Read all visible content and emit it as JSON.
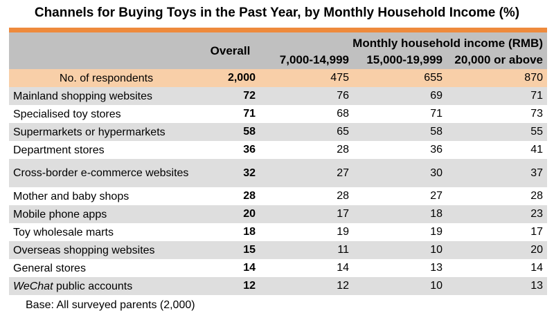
{
  "title": "Channels for Buying Toys in the Past Year, by Monthly Household Income (%)",
  "accent_color": "#ee8a3c",
  "header": {
    "overall": "Overall",
    "income_group": "Monthly household income (RMB)",
    "income_brackets": [
      "7,000-14,999",
      "15,000-19,999",
      "20,000 or above"
    ]
  },
  "respondents": {
    "label": "No. of respondents",
    "overall": "2,000",
    "values": [
      "475",
      "655",
      "870"
    ]
  },
  "footnote": "Base: All surveyed parents (2,000)",
  "chart_data": {
    "type": "table",
    "title": "Channels for Buying Toys in the Past Year, by Monthly Household Income (%)",
    "columns": [
      "Overall",
      "7,000-14,999",
      "15,000-19,999",
      "20,000 or above"
    ],
    "rows": [
      {
        "label": "Mainland shopping websites",
        "overall": 72,
        "values": [
          76,
          69,
          71
        ]
      },
      {
        "label": "Specialised toy stores",
        "overall": 71,
        "values": [
          68,
          71,
          73
        ]
      },
      {
        "label": "Supermarkets or hypermarkets",
        "overall": 58,
        "values": [
          65,
          58,
          55
        ]
      },
      {
        "label": "Department stores",
        "overall": 36,
        "values": [
          28,
          36,
          41
        ]
      },
      {
        "label": "Cross-border e-commerce websites",
        "overall": 32,
        "values": [
          27,
          30,
          37
        ]
      },
      {
        "label": "Mother and baby shops",
        "overall": 28,
        "values": [
          28,
          27,
          28
        ]
      },
      {
        "label": "Mobile phone apps",
        "overall": 20,
        "values": [
          17,
          18,
          23
        ]
      },
      {
        "label": "Toy wholesale marts",
        "overall": 18,
        "values": [
          19,
          19,
          17
        ]
      },
      {
        "label": "Overseas shopping websites",
        "overall": 15,
        "values": [
          11,
          10,
          20
        ]
      },
      {
        "label": "General stores",
        "overall": 14,
        "values": [
          14,
          13,
          14
        ]
      },
      {
        "label": "WeChat public accounts",
        "label_italic_part": "WeChat",
        "label_rest": " public accounts",
        "overall": 12,
        "values": [
          12,
          10,
          13
        ]
      }
    ]
  }
}
